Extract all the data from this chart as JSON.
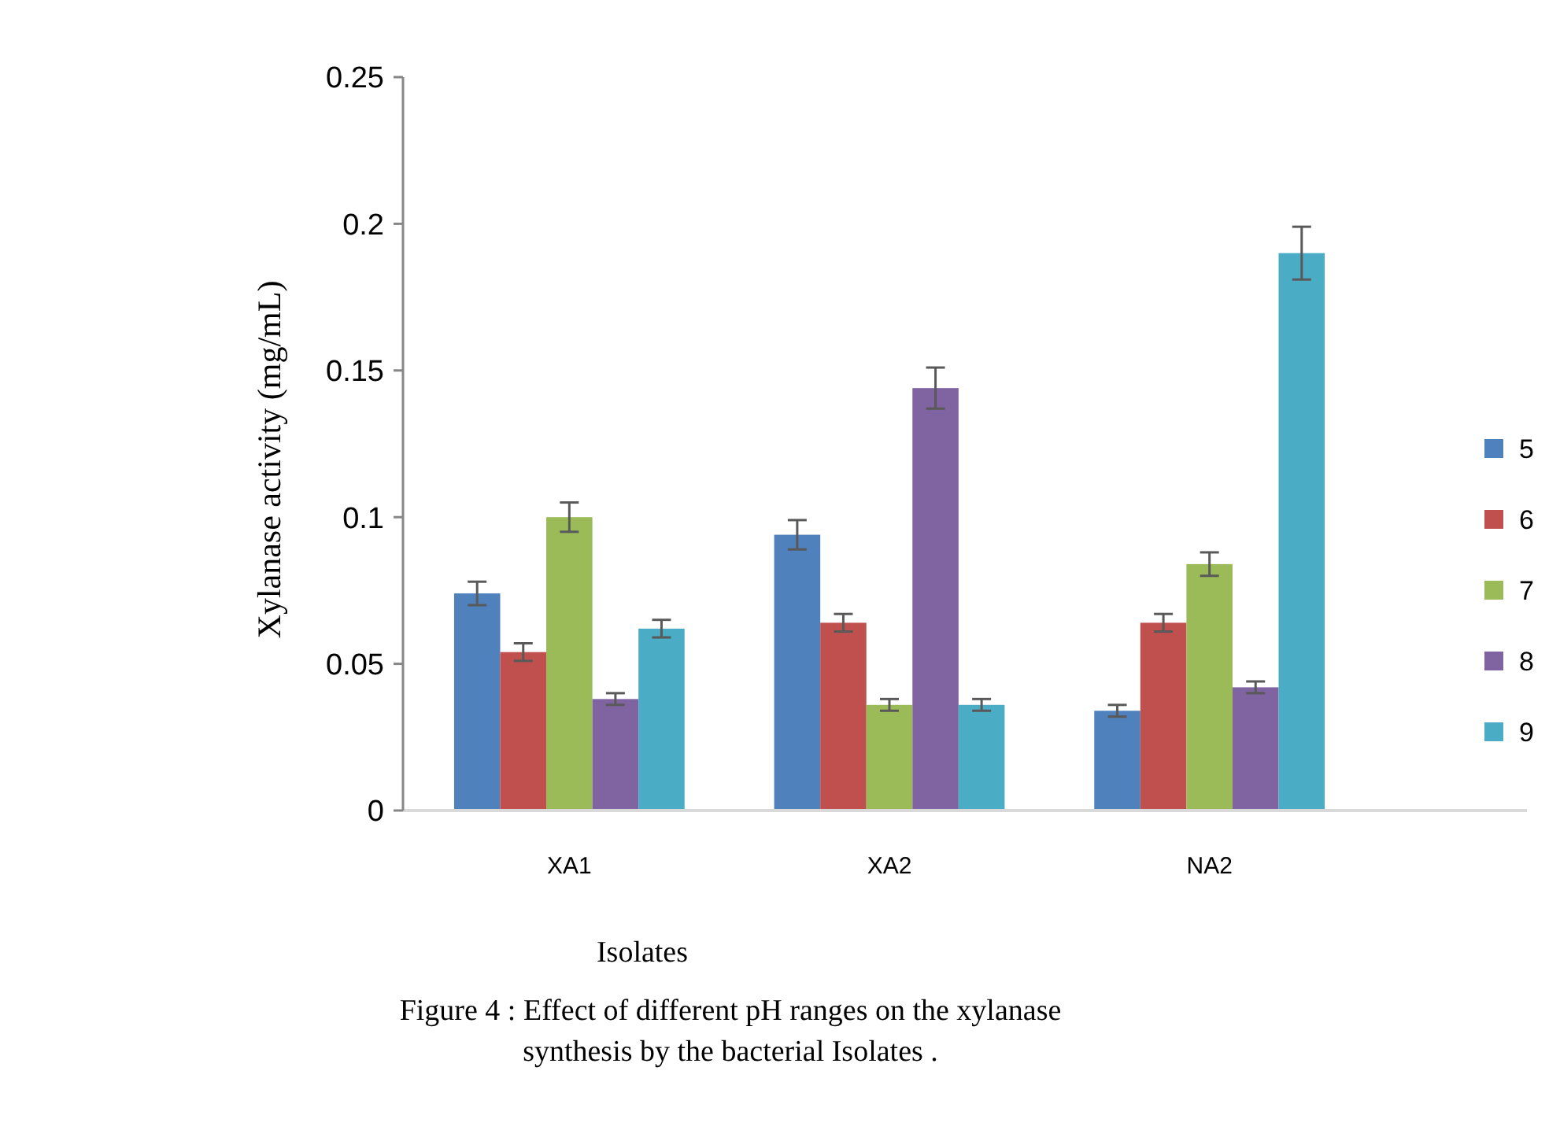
{
  "chart_data": {
    "type": "bar",
    "xlabel": "Isolates",
    "ylabel": "Xylanase activity (mg/mL)",
    "categories": [
      "XA1",
      "XA2",
      "NA2"
    ],
    "series": [
      {
        "name": "5",
        "color": "#4f81bd",
        "values": [
          0.074,
          0.094,
          0.034
        ],
        "errors": [
          0.004,
          0.005,
          0.002
        ]
      },
      {
        "name": "6",
        "color": "#c0504d",
        "values": [
          0.054,
          0.064,
          0.064
        ],
        "errors": [
          0.003,
          0.003,
          0.003
        ]
      },
      {
        "name": "7",
        "color": "#9bbb59",
        "values": [
          0.1,
          0.036,
          0.084
        ],
        "errors": [
          0.005,
          0.002,
          0.004
        ]
      },
      {
        "name": "8",
        "color": "#8064a2",
        "values": [
          0.038,
          0.144,
          0.042
        ],
        "errors": [
          0.002,
          0.007,
          0.002
        ]
      },
      {
        "name": "9",
        "color": "#4bacc6",
        "values": [
          0.062,
          0.036,
          0.19
        ],
        "errors": [
          0.003,
          0.002,
          0.009
        ]
      }
    ],
    "ylim": [
      0,
      0.25
    ],
    "yticks": [
      0,
      0.05,
      0.1,
      0.15,
      0.2,
      0.25
    ],
    "grid": false,
    "legend": "right",
    "annotations": [
      "Figure 4 : Effect of different pH ranges on the xylanase synthesis by the bacterial Isolates ."
    ]
  }
}
